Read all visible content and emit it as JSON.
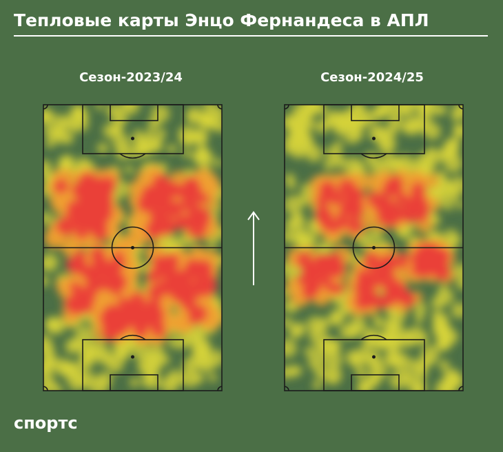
{
  "header": {
    "title": "Тепловые карты Энцо Фернандеса в АПЛ"
  },
  "panels": [
    {
      "label": "Сезон-2023/24"
    },
    {
      "label": "Сезон-2024/25"
    }
  ],
  "footer": {
    "logo": "спортс"
  }
}
